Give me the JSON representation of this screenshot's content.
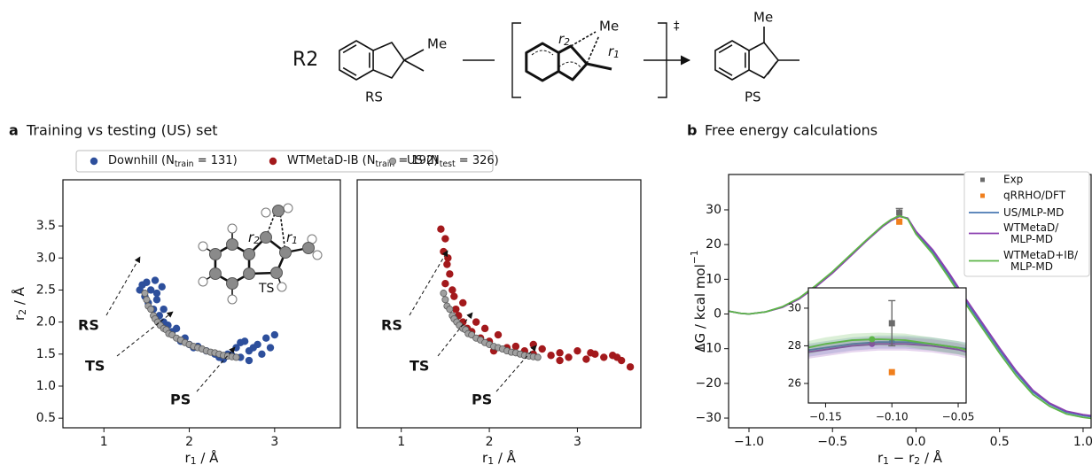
{
  "scheme": {
    "label": "R2",
    "reactant": {
      "name": "RS",
      "substituent": "Me"
    },
    "ts": {
      "symbol": "‡",
      "substituent": "Me",
      "bonds": [
        [
          "r",
          "2"
        ],
        [
          "r",
          "1"
        ]
      ]
    },
    "product": {
      "name": "PS",
      "substituent": "Me"
    }
  },
  "chart_data": [
    {
      "type": "scatter",
      "panel": "a",
      "title": "Training vs testing (US) set",
      "xlabel": [
        "r",
        "1",
        " / Å"
      ],
      "ylabel": [
        "r",
        "2",
        " / Å"
      ],
      "xlim": [
        0.52,
        3.77
      ],
      "ylim": [
        0.35,
        4.22
      ],
      "xticks": [
        1,
        2,
        3
      ],
      "yticks": [
        0.5,
        {
          "value": 1,
          "label": "1.0"
        },
        1.5,
        {
          "value": 2,
          "label": "2.0"
        },
        2.5,
        {
          "value": 3,
          "label": "3.0"
        },
        3.5
      ],
      "inset_label": "TS",
      "inset_bonds": [
        [
          "r",
          "2"
        ],
        [
          "r",
          "1"
        ]
      ],
      "annotations": [
        "RS",
        "TS",
        "PS"
      ],
      "series": [
        {
          "name": [
            "Downhill (N",
            "train",
            " = 131)"
          ],
          "color": "#2d4f9c",
          "x": [
            1.42,
            1.45,
            1.48,
            1.5,
            1.52,
            1.55,
            1.58,
            1.6,
            1.62,
            1.65,
            1.68,
            1.7,
            1.75,
            1.8,
            1.85,
            1.9,
            1.95,
            2.0,
            2.05,
            2.1,
            2.2,
            2.3,
            2.35,
            2.4,
            2.45,
            2.5,
            2.55,
            2.6,
            2.65,
            2.7,
            2.75,
            2.8,
            2.85,
            2.9,
            2.95,
            3.0,
            1.62,
            1.7,
            2.6,
            2.7
          ],
          "values": [
            2.5,
            2.58,
            2.4,
            2.62,
            2.3,
            2.5,
            2.2,
            2.65,
            2.35,
            2.1,
            2.55,
            2.0,
            1.95,
            1.85,
            1.9,
            1.7,
            1.75,
            1.65,
            1.6,
            1.62,
            1.55,
            1.5,
            1.45,
            1.42,
            1.5,
            1.48,
            1.6,
            1.45,
            1.7,
            1.55,
            1.6,
            1.65,
            1.5,
            1.75,
            1.6,
            1.8,
            2.45,
            2.2,
            1.68,
            1.4
          ]
        },
        {
          "name": [
            "US (N",
            "test",
            " = 326)"
          ],
          "color": "#a0a0a0",
          "edgecolor": "#5a5a5a",
          "x": [
            1.48,
            1.5,
            1.52,
            1.55,
            1.58,
            1.6,
            1.63,
            1.66,
            1.7,
            1.73,
            1.76,
            1.8,
            1.85,
            1.9,
            1.95,
            2.0,
            2.05,
            2.1,
            2.15,
            2.2,
            2.25,
            2.3,
            2.35,
            2.4,
            2.45,
            2.5,
            2.55
          ],
          "values": [
            2.45,
            2.35,
            2.25,
            2.2,
            2.1,
            2.05,
            2.0,
            1.95,
            1.9,
            1.88,
            1.82,
            1.8,
            1.75,
            1.72,
            1.68,
            1.65,
            1.62,
            1.6,
            1.58,
            1.55,
            1.53,
            1.52,
            1.5,
            1.48,
            1.47,
            1.46,
            1.45
          ]
        }
      ]
    },
    {
      "type": "scatter",
      "xlabel": [
        "r",
        "1",
        " / Å"
      ],
      "xlim": [
        0.5,
        3.72
      ],
      "ylim": [
        0.35,
        4.22
      ],
      "xticks": [
        1,
        2,
        3
      ],
      "annotations": [
        "RS",
        "TS",
        "PS"
      ],
      "series": [
        {
          "name": [
            "WTMetaD-IB (N",
            "train",
            " = 192)"
          ],
          "color": "#a3191c",
          "x": [
            1.45,
            1.5,
            1.48,
            1.52,
            1.55,
            1.5,
            1.58,
            1.6,
            1.53,
            1.62,
            1.65,
            1.7,
            1.75,
            1.8,
            1.85,
            1.9,
            2.0,
            2.1,
            2.2,
            2.3,
            2.4,
            2.5,
            2.6,
            2.7,
            2.8,
            2.9,
            3.0,
            3.1,
            3.2,
            3.3,
            3.4,
            3.5,
            3.6,
            1.95,
            2.05,
            2.5,
            2.8,
            3.15,
            3.45,
            1.7
          ],
          "values": [
            3.45,
            3.3,
            3.1,
            2.9,
            2.75,
            2.6,
            2.5,
            2.4,
            3.0,
            2.2,
            2.1,
            2.0,
            1.9,
            1.85,
            2.0,
            1.75,
            1.7,
            1.8,
            1.6,
            1.62,
            1.55,
            1.5,
            1.58,
            1.48,
            1.52,
            1.45,
            1.55,
            1.42,
            1.5,
            1.45,
            1.48,
            1.4,
            1.3,
            1.9,
            1.55,
            1.65,
            1.4,
            1.52,
            1.45,
            2.3
          ]
        },
        {
          "color": "#a0a0a0",
          "edgecolor": "#5a5a5a",
          "x": [
            1.48,
            1.5,
            1.52,
            1.55,
            1.58,
            1.6,
            1.63,
            1.66,
            1.7,
            1.73,
            1.76,
            1.8,
            1.85,
            1.9,
            1.95,
            2.0,
            2.05,
            2.1,
            2.15,
            2.2,
            2.25,
            2.3,
            2.35,
            2.4,
            2.45,
            2.5,
            2.55
          ],
          "values": [
            2.45,
            2.35,
            2.25,
            2.2,
            2.1,
            2.05,
            2.0,
            1.95,
            1.9,
            1.88,
            1.82,
            1.8,
            1.75,
            1.72,
            1.68,
            1.65,
            1.62,
            1.6,
            1.58,
            1.55,
            1.53,
            1.52,
            1.5,
            1.48,
            1.47,
            1.46,
            1.45
          ]
        }
      ]
    },
    {
      "type": "line",
      "panel": "b",
      "title": "Free energy calculations",
      "xlabel": [
        "r",
        "1",
        " − r",
        "2",
        " / Å"
      ],
      "ylabel": [
        "ΔG / kcal mol",
        "−1"
      ],
      "xlim": [
        -1.122,
        1.048
      ],
      "ylim": [
        -32.8,
        40.2
      ],
      "xticks": [
        {
          "value": -1,
          "label": "−1.0"
        },
        {
          "value": -0.5,
          "label": "−0.5"
        },
        {
          "value": 0,
          "label": "0.0"
        },
        0.5,
        {
          "value": 1,
          "label": "1.0"
        }
      ],
      "yticks": [
        {
          "value": -30,
          "label": "−30"
        },
        {
          "value": -20,
          "label": "−20"
        },
        {
          "value": -10,
          "label": "−10"
        },
        0,
        10,
        20,
        30
      ],
      "x": [
        -1.12,
        -1.05,
        -1.0,
        -0.9,
        -0.8,
        -0.7,
        -0.6,
        -0.5,
        -0.4,
        -0.3,
        -0.2,
        -0.15,
        -0.1,
        -0.05,
        0.0,
        0.1,
        0.2,
        0.3,
        0.4,
        0.5,
        0.6,
        0.7,
        0.8,
        0.9,
        1.0,
        1.05
      ],
      "series": [
        {
          "name": "Exp",
          "color": "#6b6b6b",
          "marker": "square",
          "x": [
            -0.1
          ],
          "values": [
            29.2
          ],
          "error": [
            1.2
          ]
        },
        {
          "name": "qRRHO/DFT",
          "color": "#f07f1d",
          "marker": "square",
          "x": [
            -0.1
          ],
          "values": [
            26.6
          ]
        },
        {
          "name": [
            "US/MLP-MD"
          ],
          "color": "#4a78b3",
          "values": [
            0.8,
            0.2,
            0.0,
            0.6,
            2.0,
            4.5,
            8.0,
            12.0,
            16.5,
            21.0,
            25.3,
            27.0,
            28.2,
            27.6,
            23.5,
            18.0,
            11.0,
            3.5,
            -3.5,
            -10.5,
            -17.0,
            -22.5,
            -26.0,
            -28.3,
            -29.3,
            -29.6
          ]
        },
        {
          "name": [
            "WTMetaD/",
            "MLP-MD"
          ],
          "color": "#8b3fb0",
          "values": [
            0.8,
            0.2,
            0.0,
            0.6,
            1.9,
            4.3,
            7.8,
            11.8,
            16.3,
            20.9,
            25.2,
            26.9,
            28.1,
            27.6,
            23.8,
            18.5,
            11.6,
            4.2,
            -2.8,
            -9.8,
            -16.4,
            -22.0,
            -25.7,
            -28.0,
            -29.0,
            -29.3
          ]
        },
        {
          "name": [
            "WTMetaD+IB/",
            "MLP-MD"
          ],
          "color": "#5db548",
          "values": [
            0.8,
            0.2,
            0.0,
            0.6,
            2.1,
            4.6,
            8.2,
            12.2,
            16.7,
            21.2,
            25.5,
            27.2,
            28.3,
            27.4,
            23.0,
            17.3,
            10.2,
            2.7,
            -4.3,
            -11.3,
            -17.8,
            -23.2,
            -26.6,
            -28.8,
            -29.8,
            -30.1
          ]
        }
      ]
    },
    {
      "type": "line",
      "xlim": [
        -0.163,
        -0.044
      ],
      "ylim": [
        24.96,
        31.08
      ],
      "xticks": [
        {
          "value": -0.15,
          "label": "−0.15"
        },
        {
          "value": -0.1,
          "label": "−0.10"
        },
        {
          "value": -0.05,
          "label": "−0.05"
        }
      ],
      "yticks": [
        26,
        28,
        30
      ],
      "x": [
        -0.17,
        -0.15,
        -0.13,
        -0.11,
        -0.09,
        -0.07,
        -0.05,
        -0.04
      ],
      "series": [
        {
          "color": "#4a78b3",
          "uncertainty": 0.35,
          "peak_x": -0.1,
          "peak_y": 28.2,
          "values": [
            27.7,
            27.9,
            28.1,
            28.2,
            28.2,
            28.1,
            27.9,
            27.8
          ]
        },
        {
          "color": "#8b3fb0",
          "uncertainty": 0.35,
          "peak_x": -0.115,
          "peak_y": 28.1,
          "values": [
            27.6,
            27.8,
            28.0,
            28.1,
            28.1,
            28.0,
            27.8,
            27.6
          ]
        },
        {
          "color": "#5db548",
          "uncertainty": 0.35,
          "peak_x": -0.115,
          "peak_y": 28.35,
          "values": [
            27.8,
            28.1,
            28.3,
            28.35,
            28.3,
            28.1,
            27.9,
            27.7
          ]
        },
        {
          "color": "#6b6b6b",
          "marker": "square",
          "x": [
            -0.1
          ],
          "values": [
            29.2
          ],
          "error": [
            1.2
          ]
        },
        {
          "color": "#f07f1d",
          "marker": "square",
          "x": [
            -0.1
          ],
          "values": [
            26.6
          ]
        }
      ]
    }
  ]
}
